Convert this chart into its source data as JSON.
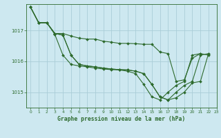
{
  "background_color": "#cde8f0",
  "grid_color": "#aacdd8",
  "line_color": "#2d6a2d",
  "marker_color": "#2d6a2d",
  "title": "Graphe pression niveau de la mer (hPa)",
  "xlim": [
    -0.5,
    23
  ],
  "ylim": [
    1014.5,
    1017.85
  ],
  "yticks": [
    1015,
    1016,
    1017
  ],
  "xticks": [
    0,
    1,
    2,
    3,
    4,
    5,
    6,
    7,
    8,
    9,
    10,
    11,
    12,
    13,
    14,
    15,
    16,
    17,
    18,
    19,
    20,
    21,
    22,
    23
  ],
  "series": [
    [
      1017.75,
      1017.25,
      1017.25,
      1016.9,
      1016.9,
      1016.82,
      1016.75,
      1016.72,
      1016.72,
      1016.65,
      1016.62,
      1016.58,
      1016.58,
      1016.57,
      1016.55,
      1016.55,
      1016.3,
      1016.25,
      1015.35,
      1015.4,
      1016.1,
      1016.25,
      null,
      null
    ],
    [
      1017.75,
      1017.25,
      1017.25,
      1016.9,
      1016.85,
      1016.2,
      1015.9,
      1015.85,
      1015.82,
      1015.78,
      1015.75,
      1015.73,
      1015.72,
      1015.68,
      1015.6,
      1015.25,
      1014.85,
      1014.75,
      1014.82,
      1015.0,
      1015.3,
      1015.35,
      1016.25,
      null
    ],
    [
      1017.75,
      1017.25,
      1017.25,
      1016.9,
      1016.85,
      1016.2,
      1015.9,
      1015.85,
      1015.82,
      1015.78,
      1015.75,
      1015.73,
      1015.72,
      1015.68,
      1015.6,
      1015.25,
      1014.85,
      1014.75,
      1015.0,
      1015.22,
      1015.35,
      1016.2,
      1016.25,
      null
    ],
    [
      1017.75,
      1017.25,
      1017.25,
      1016.87,
      1016.2,
      1015.9,
      1015.85,
      1015.82,
      1015.78,
      1015.75,
      1015.73,
      1015.72,
      1015.68,
      1015.6,
      1015.25,
      1014.85,
      1014.75,
      1015.0,
      1015.22,
      1015.35,
      1016.2,
      1016.25,
      1016.2,
      null
    ]
  ]
}
